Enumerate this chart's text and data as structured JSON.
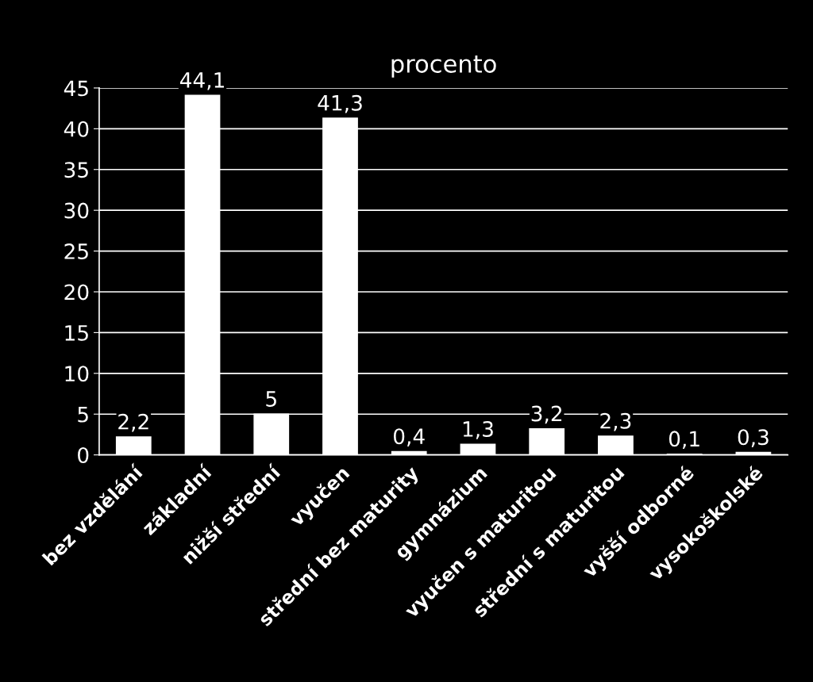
{
  "chart_data": {
    "type": "bar",
    "title": "procento",
    "categories": [
      "bez vzdělání",
      "základní",
      "nižší střední",
      "vyučen",
      "střední bez maturity",
      "gymnázium",
      "vyučen s maturitou",
      "střední s maturitou",
      "vyšší odborné",
      "vysokoškolské"
    ],
    "values": [
      2.2,
      44.1,
      5,
      41.3,
      0.4,
      1.3,
      3.2,
      2.3,
      0.1,
      0.3
    ],
    "value_labels": [
      "2,2",
      "44,1",
      "5",
      "41,3",
      "0,4",
      "1,3",
      "3,2",
      "2,3",
      "0,1",
      "0,3"
    ],
    "color": "#ffffff",
    "ylim": [
      0,
      45
    ],
    "yticks": [
      0,
      5,
      10,
      15,
      20,
      25,
      30,
      35,
      40,
      45
    ],
    "grid": "y",
    "legend": false
  }
}
